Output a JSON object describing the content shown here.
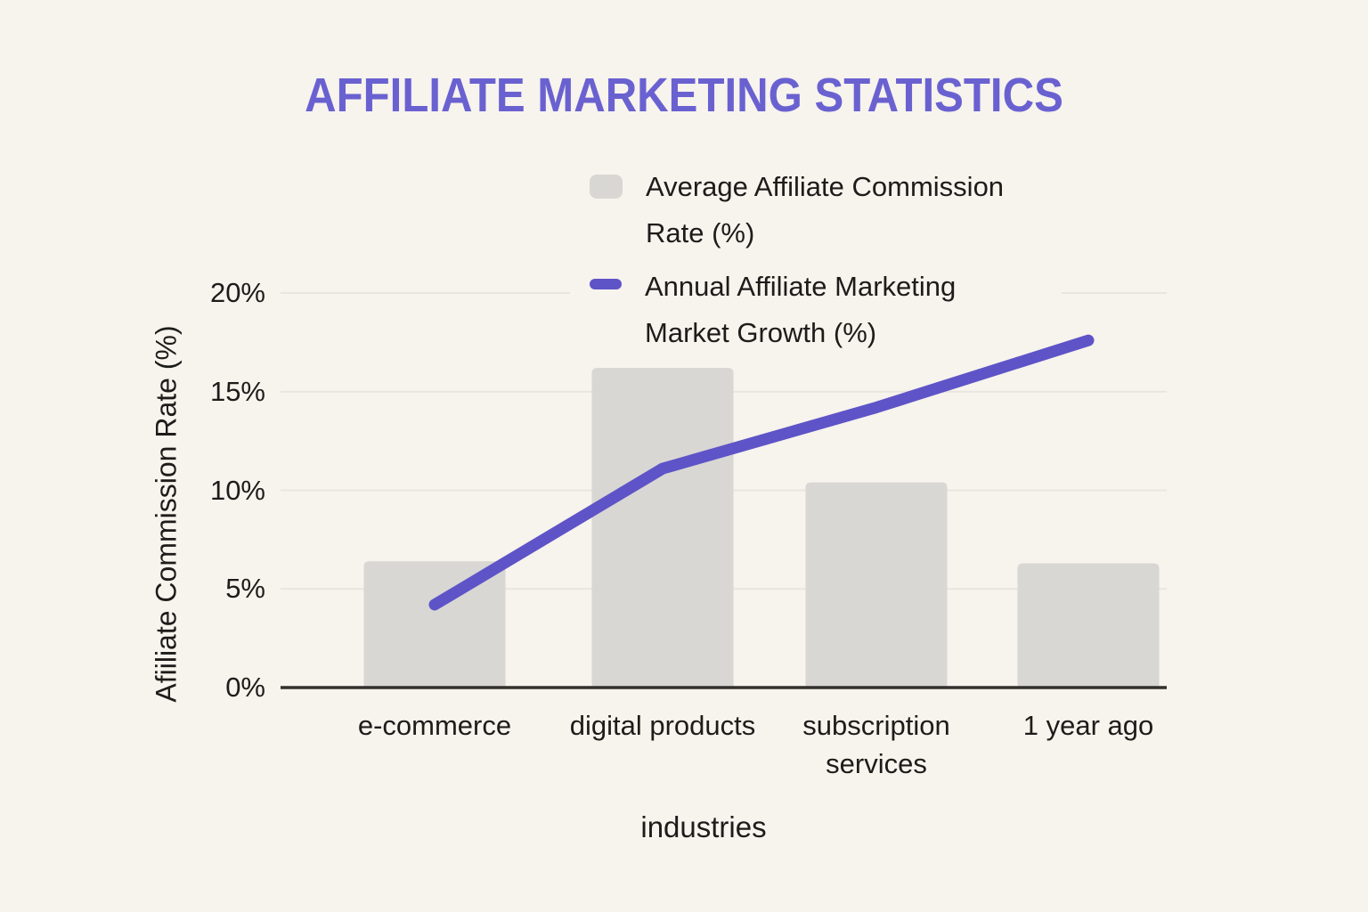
{
  "title": "AFFILIATE MARKETING STATISTICS",
  "chart_data": {
    "type": "combo",
    "title": "AFFILIATE MARKETING STATISTICS",
    "categories": [
      "e-commerce",
      "digital products",
      "subscription services",
      "1 year ago"
    ],
    "x_tick_labels": [
      "e-commerce",
      "digital products",
      "subscription\nservices",
      "1 year ago"
    ],
    "series": [
      {
        "name": "Average Affiliate Commission Rate (%)",
        "type": "bar",
        "color": "#d8d7d4",
        "values": [
          6.4,
          16.2,
          10.4,
          6.3
        ]
      },
      {
        "name": "Annual Affiliate Marketing Market Growth (%)",
        "type": "line",
        "color": "#5e54c7",
        "values": [
          4.2,
          11.1,
          14.2,
          17.6
        ]
      }
    ],
    "xlabel": "industries",
    "ylabel": "Afiiliate Commission Rate (%)",
    "ylim": [
      0,
      20
    ],
    "ytick_labels": [
      "0%",
      "5%",
      "10%",
      "15%",
      "20%"
    ],
    "grid": true,
    "legend_position": "inside-top-right"
  },
  "legend": {
    "items": [
      {
        "lines": [
          "Average Affiliate Commission",
          "Rate (%)"
        ],
        "marker": "square",
        "color": "#d8d7d4"
      },
      {
        "lines": [
          "Annual Affiliate Marketing",
          "Market Growth (%)"
        ],
        "marker": "dash",
        "color": "#5e54c7"
      }
    ]
  },
  "colors": {
    "background": "#f7f3ed",
    "title": "#6a61d1",
    "bar": "#d8d7d4",
    "line": "#5e54c7",
    "text": "#1d1c1a",
    "gridline": "#e9e5df",
    "axis": "#33312d"
  }
}
